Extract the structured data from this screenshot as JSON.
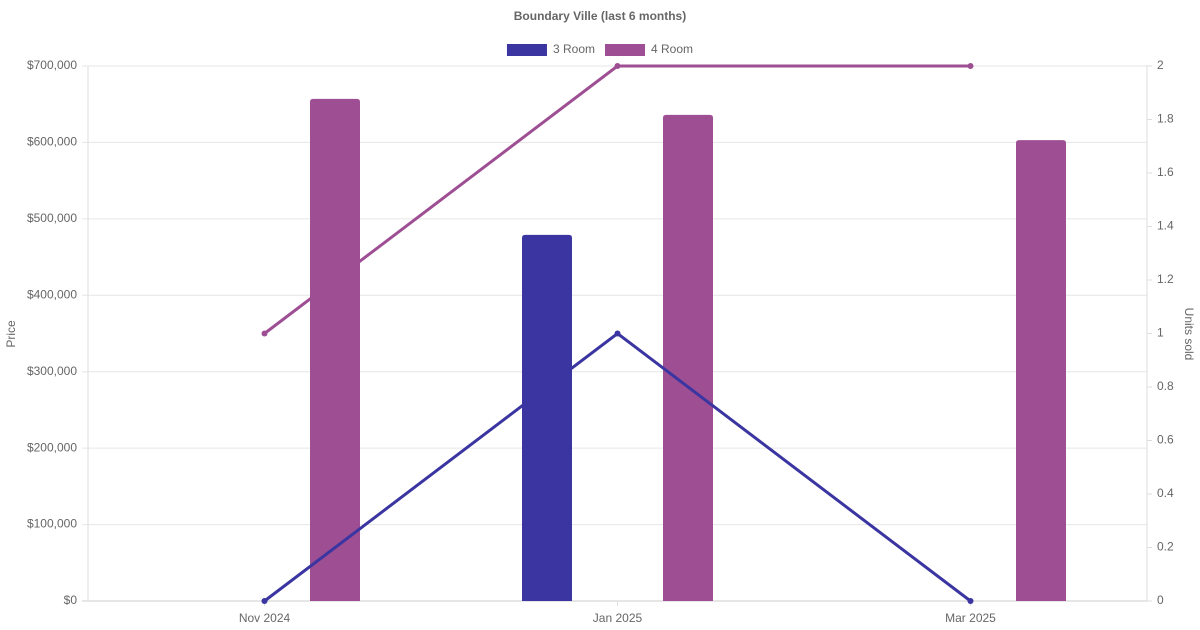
{
  "chart_data": {
    "type": "bar-line",
    "title": "Boundary Ville (last 6 months)",
    "categories": [
      "Nov 2024",
      "Jan 2025",
      "Mar 2025"
    ],
    "y_label": "Price",
    "y2_label": "Units sold",
    "series": [
      {
        "name": "3 Room",
        "color": "#3a35a0",
        "values": [
          null,
          479000,
          null
        ],
        "units": [
          0,
          1,
          0
        ]
      },
      {
        "name": "4 Room",
        "color": "#9e4f93",
        "values": [
          657000,
          636000,
          603000
        ],
        "units": [
          1,
          2,
          2
        ]
      }
    ],
    "ylim": [
      0,
      700000
    ],
    "yticks": [
      {
        "value": 0,
        "label": "$0"
      },
      {
        "value": 100000,
        "label": "$100,000"
      },
      {
        "value": 200000,
        "label": "$200,000"
      },
      {
        "value": 300000,
        "label": "$300,000"
      },
      {
        "value": 400000,
        "label": "$400,000"
      },
      {
        "value": 500000,
        "label": "$500,000"
      },
      {
        "value": 600000,
        "label": "$600,000"
      },
      {
        "value": 700000,
        "label": "$700,000"
      }
    ],
    "y2lim": [
      0,
      2
    ],
    "y2ticks": [
      0,
      0.2,
      0.4,
      0.6,
      0.8,
      1,
      1.2,
      1.4,
      1.6,
      1.8,
      2
    ],
    "grid": true,
    "legend": "top"
  }
}
